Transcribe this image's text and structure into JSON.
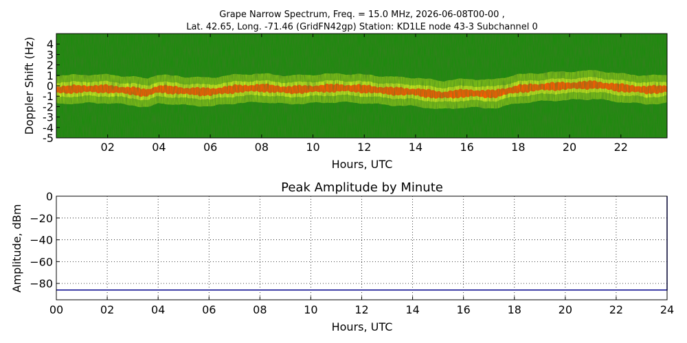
{
  "chart_data": [
    {
      "type": "heatmap",
      "title_line1": "Grape Narrow Spectrum, Freq. = 15.0 MHz, 2026-06-08T00-00 ,",
      "title_line2": "Lat.  42.65, Long. -71.46 (GridFN42gp) Station: KD1LE node 43-3 Subchannel 0",
      "xlabel": "Hours, UTC",
      "ylabel": "Doppler Shift (Hz)",
      "xlim": [
        0,
        23.8
      ],
      "ylim": [
        -5,
        5
      ],
      "xticks": [
        2,
        4,
        6,
        8,
        10,
        12,
        14,
        16,
        18,
        20,
        22
      ],
      "xtick_labels": [
        "02",
        "04",
        "06",
        "08",
        "10",
        "12",
        "14",
        "16",
        "18",
        "20",
        "22"
      ],
      "yticks": [
        4,
        3,
        2,
        1,
        0,
        -1,
        -2,
        -3,
        -4,
        -5
      ],
      "ytick_labels": [
        "4",
        "3",
        "2",
        "1",
        "0",
        "-1",
        "-2",
        "-3",
        "-4",
        "-5"
      ],
      "peak_doppler_trace": {
        "x": [
          0,
          1,
          2,
          3,
          3.5,
          4,
          5,
          6,
          7,
          8,
          9,
          10,
          11,
          12,
          13,
          14,
          15,
          16,
          17,
          18,
          19,
          20,
          21,
          22,
          23,
          23.8
        ],
        "y": [
          -0.4,
          -0.3,
          -0.3,
          -0.5,
          -0.7,
          -0.3,
          -0.5,
          -0.6,
          -0.3,
          -0.2,
          -0.4,
          -0.3,
          -0.2,
          -0.3,
          -0.5,
          -0.6,
          -0.9,
          -0.7,
          -0.8,
          -0.3,
          -0.1,
          0.0,
          0.1,
          -0.2,
          -0.4,
          -0.3
        ]
      },
      "colors": {
        "background": "#1e8a0e",
        "band_outer": "#c7e81e",
        "band_core": "#ff5a00"
      }
    },
    {
      "type": "line",
      "title": "Peak Amplitude by Minute",
      "xlabel": "Hours, UTC",
      "ylabel": "Amplitude, dBm",
      "xlim": [
        0,
        24
      ],
      "ylim": [
        -95,
        0
      ],
      "grid": true,
      "xticks": [
        0,
        2,
        4,
        6,
        8,
        10,
        12,
        14,
        16,
        18,
        20,
        22,
        24
      ],
      "xtick_labels": [
        "00",
        "02",
        "04",
        "06",
        "08",
        "10",
        "12",
        "14",
        "16",
        "18",
        "20",
        "22",
        "24"
      ],
      "yticks": [
        0,
        -20,
        -40,
        -60,
        -80
      ],
      "ytick_labels": [
        "0",
        "−20",
        "−40",
        "−60",
        "−80"
      ],
      "series": [
        {
          "x": [
            0,
            6,
            12,
            18,
            23.95,
            24,
            24
          ],
          "y": [
            -86,
            -86,
            -86,
            -86,
            -86,
            -86,
            0
          ],
          "color": "#00008b"
        }
      ]
    }
  ]
}
